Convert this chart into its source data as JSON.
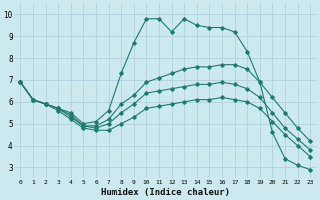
{
  "xlabel": "Humidex (Indice chaleur)",
  "ylabel": "",
  "bg_color": "#cce9f0",
  "grid_color": "#aacdd8",
  "line_color": "#1e7b6e",
  "xlim": [
    -0.5,
    23.5
  ],
  "ylim": [
    2.5,
    10.5
  ],
  "xticks": [
    0,
    1,
    2,
    3,
    4,
    5,
    6,
    7,
    8,
    9,
    10,
    11,
    12,
    13,
    14,
    15,
    16,
    17,
    18,
    19,
    20,
    21,
    22,
    23
  ],
  "yticks": [
    3,
    4,
    5,
    6,
    7,
    8,
    9,
    10
  ],
  "series": [
    {
      "x": [
        0,
        1,
        2,
        3,
        4,
        5,
        6,
        7,
        8,
        9,
        10,
        11,
        12,
        13,
        14,
        15,
        16,
        17,
        18,
        19,
        20,
        21,
        22,
        23
      ],
      "y": [
        6.9,
        6.1,
        5.9,
        5.7,
        5.5,
        5.0,
        5.1,
        5.6,
        7.3,
        8.7,
        9.8,
        9.8,
        9.2,
        9.8,
        9.5,
        9.4,
        9.4,
        9.2,
        8.3,
        6.9,
        4.6,
        3.4,
        3.1,
        2.9
      ]
    },
    {
      "x": [
        0,
        1,
        2,
        3,
        4,
        5,
        6,
        7,
        8,
        9,
        10,
        11,
        12,
        13,
        14,
        15,
        16,
        17,
        18,
        19,
        20,
        21,
        22,
        23
      ],
      "y": [
        6.9,
        6.1,
        5.9,
        5.7,
        5.4,
        4.9,
        4.9,
        5.2,
        5.9,
        6.3,
        6.9,
        7.1,
        7.3,
        7.5,
        7.6,
        7.6,
        7.7,
        7.7,
        7.5,
        6.9,
        6.2,
        5.5,
        4.8,
        4.2
      ]
    },
    {
      "x": [
        0,
        1,
        2,
        3,
        4,
        5,
        6,
        7,
        8,
        9,
        10,
        11,
        12,
        13,
        14,
        15,
        16,
        17,
        18,
        19,
        20,
        21,
        22,
        23
      ],
      "y": [
        6.9,
        6.1,
        5.9,
        5.7,
        5.3,
        4.9,
        4.8,
        5.0,
        5.5,
        5.9,
        6.4,
        6.5,
        6.6,
        6.7,
        6.8,
        6.8,
        6.9,
        6.8,
        6.6,
        6.2,
        5.5,
        4.8,
        4.3,
        3.8
      ]
    },
    {
      "x": [
        0,
        1,
        2,
        3,
        4,
        5,
        6,
        7,
        8,
        9,
        10,
        11,
        12,
        13,
        14,
        15,
        16,
        17,
        18,
        19,
        20,
        21,
        22,
        23
      ],
      "y": [
        6.9,
        6.1,
        5.9,
        5.6,
        5.2,
        4.8,
        4.7,
        4.7,
        5.0,
        5.3,
        5.7,
        5.8,
        5.9,
        6.0,
        6.1,
        6.1,
        6.2,
        6.1,
        6.0,
        5.7,
        5.1,
        4.5,
        4.0,
        3.5
      ]
    }
  ]
}
